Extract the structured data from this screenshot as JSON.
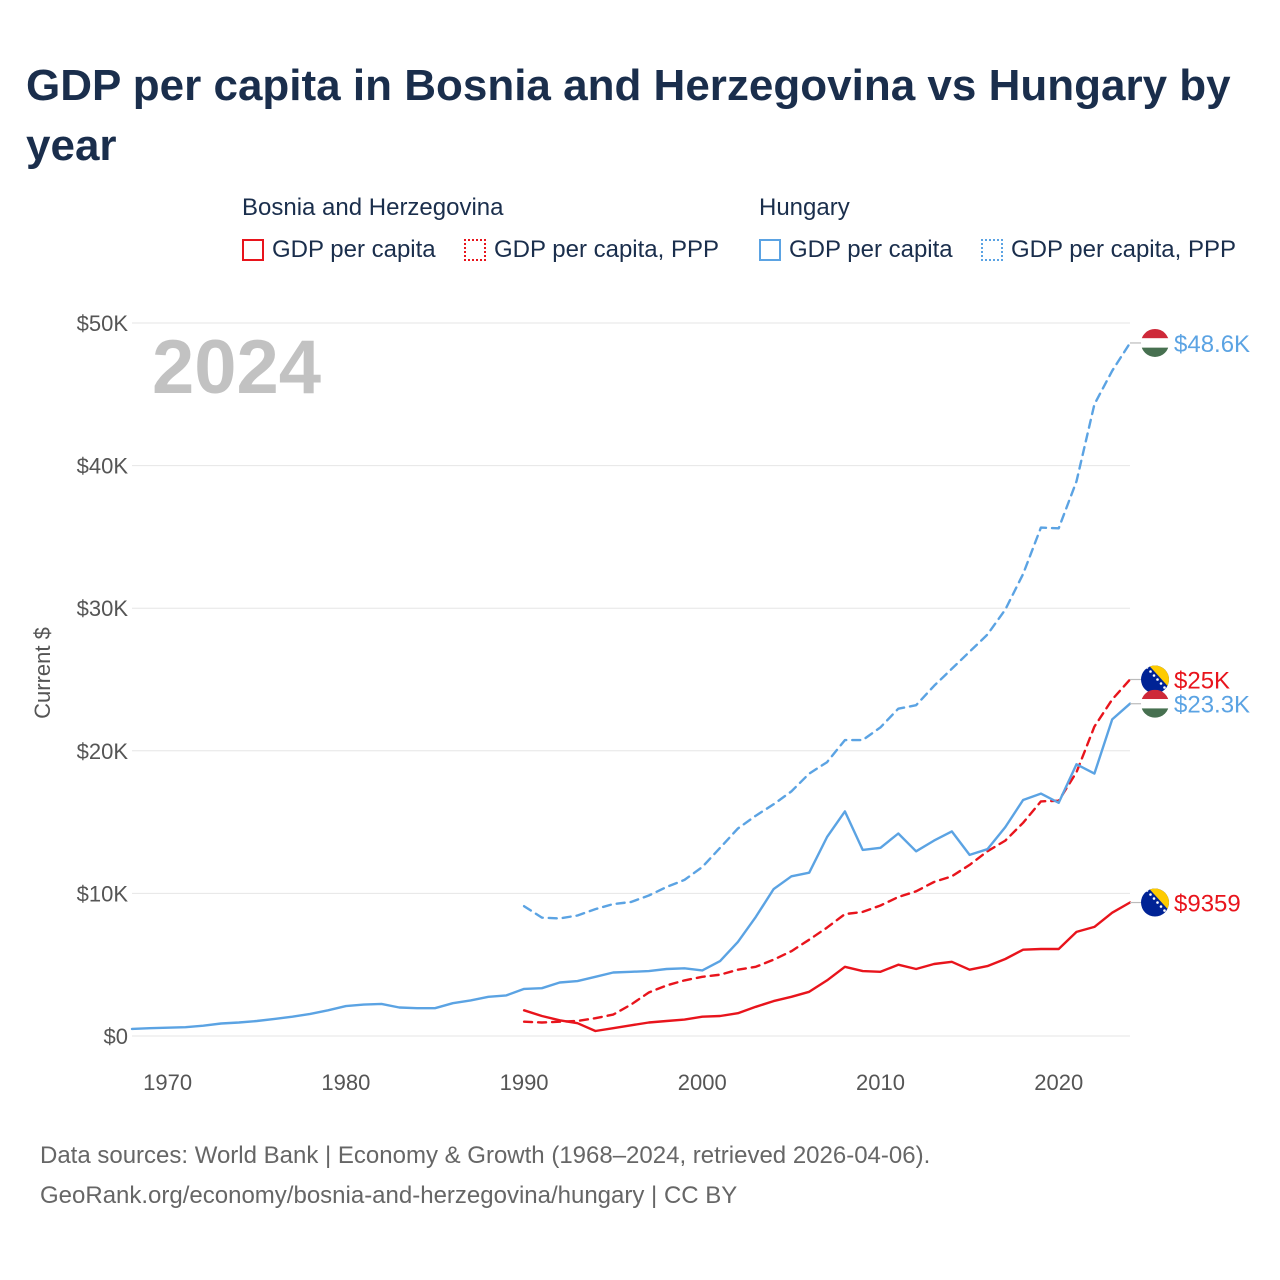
{
  "chart_data": {
    "type": "line",
    "title": "GDP per capita in Bosnia and Herzegovina vs Hungary by year",
    "year_label": "2024",
    "ylabel": "Current $",
    "xlabel": "",
    "xlim": [
      1968,
      2024
    ],
    "ylim": [
      0,
      50000
    ],
    "x_ticks": [
      1970,
      1980,
      1990,
      2000,
      2010,
      2020
    ],
    "x_tick_labels": [
      "1970",
      "1980",
      "1990",
      "2000",
      "2010",
      "2020"
    ],
    "y_ticks": [
      0,
      10000,
      20000,
      30000,
      40000,
      50000
    ],
    "y_tick_labels": [
      "$0",
      "$10K",
      "$20K",
      "$30K",
      "$40K",
      "$50K"
    ],
    "grid": true,
    "legend": {
      "placement": "top",
      "groups": [
        {
          "country": "Bosnia and Herzegovina",
          "items": [
            "GDP per capita",
            "GDP per capita, PPP"
          ]
        },
        {
          "country": "Hungary",
          "items": [
            "GDP per capita",
            "GDP per capita, PPP"
          ]
        }
      ]
    },
    "series": [
      {
        "name": "Bosnia and Herzegovina — GDP per capita",
        "country": "Bosnia and Herzegovina",
        "metric": "GDP per capita",
        "color": "#e8141c",
        "dash": "solid",
        "end_label": "$9359",
        "x": [
          1990,
          1991,
          1992,
          1993,
          1994,
          1995,
          1996,
          1997,
          1998,
          1999,
          2000,
          2001,
          2002,
          2003,
          2004,
          2005,
          2006,
          2007,
          2008,
          2009,
          2010,
          2011,
          2012,
          2013,
          2014,
          2015,
          2016,
          2017,
          2018,
          2019,
          2020,
          2021,
          2022,
          2023,
          2024
        ],
        "values": [
          1800,
          1400,
          1100,
          900,
          350,
          550,
          750,
          950,
          1050,
          1150,
          1350,
          1400,
          1600,
          2050,
          2450,
          2750,
          3100,
          3900,
          4850,
          4550,
          4500,
          5000,
          4700,
          5050,
          5200,
          4650,
          4900,
          5400,
          6050,
          6100,
          6100,
          7300,
          7650,
          8650,
          9359
        ]
      },
      {
        "name": "Bosnia and Herzegovina — GDP per capita, PPP",
        "country": "Bosnia and Herzegovina",
        "metric": "GDP per capita, PPP",
        "color": "#e8141c",
        "dash": "dashed",
        "end_label": "$25K",
        "x": [
          1990,
          1991,
          1992,
          1993,
          1994,
          1995,
          1996,
          1997,
          1998,
          1999,
          2000,
          2001,
          2002,
          2003,
          2004,
          2005,
          2006,
          2007,
          2008,
          2009,
          2010,
          2011,
          2012,
          2013,
          2014,
          2015,
          2016,
          2017,
          2018,
          2019,
          2020,
          2021,
          2022,
          2023,
          2024
        ],
        "values": [
          1000,
          950,
          1000,
          1050,
          1250,
          1500,
          2200,
          3050,
          3550,
          3900,
          4150,
          4300,
          4650,
          4850,
          5350,
          5950,
          6750,
          7600,
          8550,
          8700,
          9150,
          9750,
          10150,
          10800,
          11200,
          12000,
          12950,
          13700,
          14950,
          16450,
          16500,
          18500,
          21700,
          23600,
          25000
        ]
      },
      {
        "name": "Hungary — GDP per capita",
        "country": "Hungary",
        "metric": "GDP per capita",
        "color": "#5ba3e3",
        "dash": "solid",
        "end_label": "$23.3K",
        "x": [
          1968,
          1969,
          1970,
          1971,
          1972,
          1973,
          1974,
          1975,
          1976,
          1977,
          1978,
          1979,
          1980,
          1981,
          1982,
          1983,
          1984,
          1985,
          1986,
          1987,
          1988,
          1989,
          1990,
          1991,
          1992,
          1993,
          1994,
          1995,
          1996,
          1997,
          1998,
          1999,
          2000,
          2001,
          2002,
          2003,
          2004,
          2005,
          2006,
          2007,
          2008,
          2009,
          2010,
          2011,
          2012,
          2013,
          2014,
          2015,
          2016,
          2017,
          2018,
          2019,
          2020,
          2021,
          2022,
          2023,
          2024
        ],
        "values": [
          500,
          550,
          580,
          620,
          720,
          880,
          950,
          1050,
          1200,
          1350,
          1550,
          1800,
          2100,
          2200,
          2250,
          2000,
          1950,
          1950,
          2300,
          2500,
          2750,
          2850,
          3300,
          3350,
          3750,
          3850,
          4150,
          4450,
          4500,
          4550,
          4700,
          4750,
          4600,
          5250,
          6600,
          8350,
          10300,
          11200,
          11450,
          13950,
          15750,
          13050,
          13200,
          14200,
          12950,
          13700,
          14350,
          12700,
          13100,
          14650,
          16550,
          17000,
          16350,
          19050,
          18400,
          22200,
          23300
        ]
      },
      {
        "name": "Hungary — GDP per capita, PPP",
        "country": "Hungary",
        "metric": "GDP per capita, PPP",
        "color": "#5ba3e3",
        "dash": "dashed",
        "end_label": "$48.6K",
        "x": [
          1990,
          1991,
          1992,
          1993,
          1994,
          1995,
          1996,
          1997,
          1998,
          1999,
          2000,
          2001,
          2002,
          2003,
          2004,
          2005,
          2006,
          2007,
          2008,
          2009,
          2010,
          2011,
          2012,
          2013,
          2014,
          2015,
          2016,
          2017,
          2018,
          2019,
          2020,
          2021,
          2022,
          2023,
          2024
        ],
        "values": [
          9100,
          8300,
          8250,
          8450,
          8900,
          9250,
          9400,
          9850,
          10450,
          10950,
          11850,
          13200,
          14550,
          15450,
          16250,
          17150,
          18400,
          19200,
          20750,
          20750,
          21650,
          22950,
          23200,
          24550,
          25750,
          26950,
          28150,
          29900,
          32400,
          35650,
          35600,
          38900,
          44300,
          46650,
          48600
        ]
      }
    ]
  },
  "legend": {
    "groups": [
      {
        "country": "Bosnia and Herzegovina",
        "items": [
          {
            "label": "GDP per capita",
            "color": "#e8141c",
            "style": "solid"
          },
          {
            "label": "GDP per capita, PPP",
            "color": "#e8141c",
            "style": "dotted"
          }
        ]
      },
      {
        "country": "Hungary",
        "items": [
          {
            "label": "GDP per capita",
            "color": "#5ba3e3",
            "style": "solid"
          },
          {
            "label": "GDP per capita, PPP",
            "color": "#5ba3e3",
            "style": "dotted"
          }
        ]
      }
    ]
  },
  "footer": {
    "line1": "Data sources: World Bank | Economy & Growth (1968–2024, retrieved 2026-04-06).",
    "line2": "GeoRank.org/economy/bosnia-and-herzegovina/hungary | CC BY"
  },
  "colors": {
    "title": "#1a2e4c",
    "bosnia": "#e8141c",
    "hungary": "#5ba3e3",
    "grid": "#e6e6e6",
    "axis_text": "#555555",
    "year_watermark": "#c2c2c2"
  },
  "icons": {
    "bosnia_flag": "bosnia-flag-icon",
    "hungary_flag": "hungary-flag-icon"
  }
}
